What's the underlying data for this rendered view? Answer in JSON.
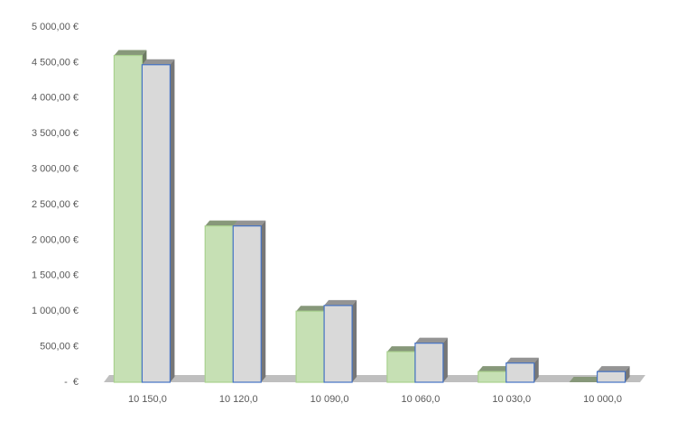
{
  "chart_data": {
    "type": "bar",
    "categories": [
      "10 150,0",
      "10 120,0",
      "10 090,0",
      "10 060,0",
      "10 030,0",
      "10 000,0"
    ],
    "series": [
      {
        "color": "#c6e0b4",
        "values": [
          4600,
          2200,
          1000,
          430,
          150,
          0
        ]
      },
      {
        "color": "#d9d9d9",
        "values": [
          4470,
          2200,
          1080,
          550,
          270,
          150
        ]
      }
    ],
    "ylim": [
      0,
      5000
    ],
    "yticks": [
      {
        "value": 0,
        "label": "-  €"
      },
      {
        "value": 500,
        "label": "500,00 €"
      },
      {
        "value": 1000,
        "label": "1 000,00 €"
      },
      {
        "value": 1500,
        "label": "1 500,00 €"
      },
      {
        "value": 2000,
        "label": "2 000,00 €"
      },
      {
        "value": 2500,
        "label": "2 500,00 €"
      },
      {
        "value": 3000,
        "label": "3 000,00 €"
      },
      {
        "value": 3500,
        "label": "3 500,00 €"
      },
      {
        "value": 4000,
        "label": "4 000,00 €"
      },
      {
        "value": 4500,
        "label": "4 500,00 €"
      },
      {
        "value": 5000,
        "label": "5 000,00 €"
      }
    ],
    "grid": false
  }
}
